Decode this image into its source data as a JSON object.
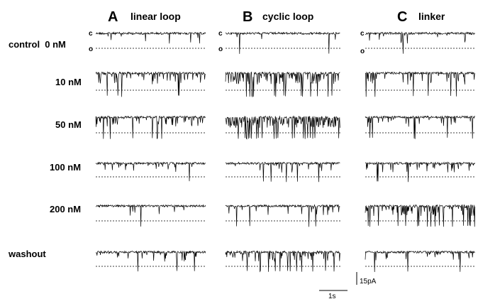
{
  "panels": [
    {
      "letter": "A",
      "title": "linear loop"
    },
    {
      "letter": "B",
      "title": "cyclic loop"
    },
    {
      "letter": "C",
      "title": "linker"
    }
  ],
  "conditions": [
    "control  0 nM",
    "10 nM",
    "50 nM",
    "100 nM",
    "200 nM",
    "washout"
  ],
  "levels": {
    "closed": "c",
    "open": "o"
  },
  "scale_bar": {
    "current": "15pA",
    "time": "1s"
  }
}
